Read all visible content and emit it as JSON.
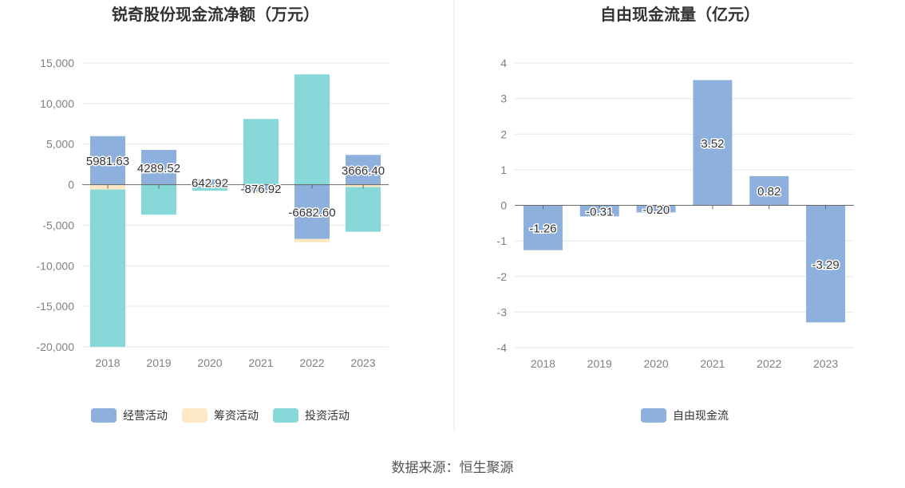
{
  "chart_data": [
    {
      "type": "bar",
      "stacked": true,
      "title": "锐奇股份现金流净额（万元）",
      "categories": [
        "2018",
        "2019",
        "2020",
        "2021",
        "2022",
        "2023"
      ],
      "ylim": [
        -20000,
        15000
      ],
      "yticks": [
        15000,
        10000,
        5000,
        0,
        -5000,
        -10000,
        -15000,
        -20000
      ],
      "ytick_labels": [
        "15,000",
        "10,000",
        "5,000",
        "0",
        "-5,000",
        "-10,000",
        "-15,000",
        "-20,000"
      ],
      "grid": true,
      "legend_position": "bottom",
      "series": [
        {
          "name": "经营活动",
          "color": "#8eb0dc",
          "values": [
            5981.63,
            4289.52,
            642.92,
            -876.92,
            -6682.6,
            3666.4
          ]
        },
        {
          "name": "筹资活动",
          "color": "#fde8c6",
          "values": [
            -600,
            0,
            0,
            -250,
            -450,
            -300
          ]
        },
        {
          "name": "投资活动",
          "color": "#86d8d9",
          "values": [
            -19400,
            -3700,
            -750,
            8100,
            13600,
            -5500
          ]
        }
      ],
      "data_labels": [
        "5981.63",
        "4289.52",
        "642.92",
        "-876.92",
        "-6682.60",
        "3666.40"
      ]
    },
    {
      "type": "bar",
      "title": "自由现金流量（亿元）",
      "categories": [
        "2018",
        "2019",
        "2020",
        "2021",
        "2022",
        "2023"
      ],
      "ylim": [
        -4,
        4
      ],
      "yticks": [
        4,
        3,
        2,
        1,
        0,
        -1,
        -2,
        -3,
        -4
      ],
      "ytick_labels": [
        "4",
        "3",
        "2",
        "1",
        "0",
        "-1",
        "-2",
        "-3",
        "-4"
      ],
      "grid": true,
      "legend_position": "bottom",
      "series": [
        {
          "name": "自由现金流",
          "color": "#8eb0dc",
          "values": [
            -1.26,
            -0.31,
            -0.2,
            3.52,
            0.82,
            -3.29
          ]
        }
      ],
      "data_labels": [
        "-1.26",
        "-0.31",
        "-0.20",
        "3.52",
        "0.82",
        "-3.29"
      ]
    }
  ],
  "source_text": "数据来源：恒生聚源"
}
